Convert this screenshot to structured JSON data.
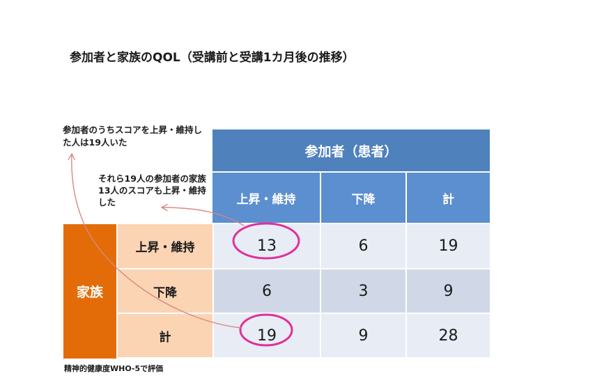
{
  "title": "参加者と家族のQOL（受講前と受講1カ月後の推移）",
  "annotations": {
    "note1": "参加者のうちスコアを上昇・維持した人は19人いた",
    "note2": "それら19人の参加者の家族13人のスコアも上昇・維持した"
  },
  "table": {
    "column_group": "参加者（患者）",
    "columns": [
      "上昇・維持",
      "下降",
      "計"
    ],
    "row_group": "家族",
    "rows": [
      {
        "label": "上昇・維持",
        "values": [
          "13",
          "6",
          "19"
        ]
      },
      {
        "label": "下降",
        "values": [
          "6",
          "3",
          "9"
        ]
      },
      {
        "label": "計",
        "values": [
          "19",
          "9",
          "28"
        ]
      }
    ]
  },
  "footnote": "精神的健康度WHO-5で評価",
  "colors": {
    "header_dark": "#4f81bd",
    "header": "#5b8fd0",
    "family_label": "#e36c09",
    "row_label": "#fbd4b4",
    "circle": "#e0309a",
    "arrow": "#d98880"
  }
}
